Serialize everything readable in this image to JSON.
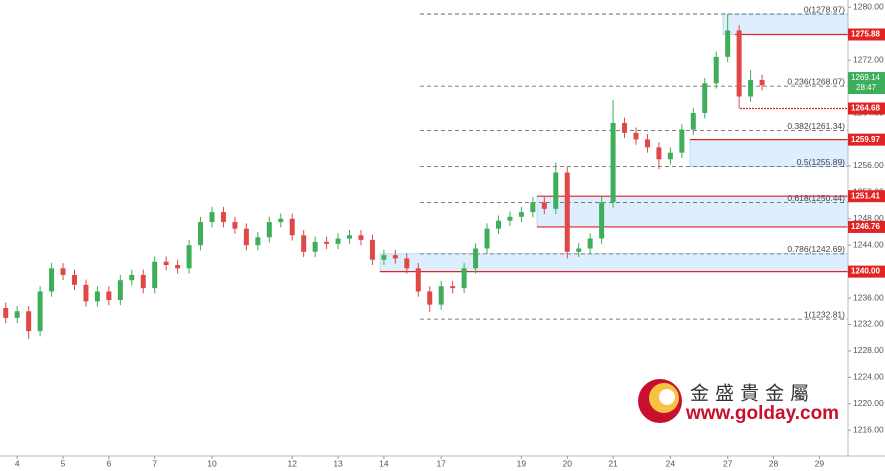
{
  "chart_data": {
    "type": "candlestick",
    "categories": [
      null,
      "4",
      null,
      null,
      null,
      "5",
      null,
      null,
      null,
      "6",
      null,
      null,
      null,
      "7",
      null,
      null,
      null,
      null,
      "10",
      null,
      null,
      null,
      null,
      null,
      null,
      "12",
      null,
      null,
      null,
      "13",
      null,
      null,
      null,
      "14",
      null,
      null,
      null,
      null,
      "17",
      null,
      null,
      null,
      null,
      null,
      null,
      "19",
      null,
      null,
      null,
      "20",
      null,
      null,
      null,
      "21",
      null,
      null,
      null,
      null,
      "24",
      null,
      null,
      null,
      null,
      "27",
      null,
      null,
      null,
      "28",
      null,
      null,
      null,
      "29",
      null,
      null
    ],
    "open": [
      1234.5,
      1233,
      1234,
      1231,
      1237,
      1240.5,
      1239.5,
      1238,
      1235.5,
      1237,
      1235.7,
      1238.7,
      1239.5,
      1237.5,
      1241.5,
      1241,
      1240.5,
      1244,
      1247.5,
      1249,
      1247.5,
      1246.5,
      1244,
      1245.2,
      1247.5,
      1248,
      1245.5,
      1243,
      1244.5,
      1244.2,
      1245,
      1245.5,
      1244.8,
      1241.8,
      1242.5,
      1242,
      1240.5,
      1237,
      1235,
      1237.8,
      1237.5,
      1240.5,
      1243.5,
      1246.5,
      1247.7,
      1248.3,
      1249,
      1250.5,
      1249.5,
      1255,
      1243,
      1243.5,
      1245,
      1250.5,
      1262.5,
      1261,
      1260,
      1258.8,
      1257,
      1258,
      1261.5,
      1264,
      1268.5,
      1272.5,
      1276.5,
      1266.5,
      1269,
      null,
      null,
      null,
      null,
      null,
      null,
      null
    ],
    "high": [
      1235.3,
      1234.8,
      1234.8,
      1237.8,
      1241.3,
      1241.3,
      1240.3,
      1238.8,
      1237.8,
      1237.8,
      1239.5,
      1240.3,
      1240.3,
      1242.3,
      1242.3,
      1241.8,
      1244.8,
      1248.3,
      1249.8,
      1249.8,
      1248.3,
      1247.3,
      1246,
      1248.3,
      1248.8,
      1248.8,
      1246.3,
      1245.3,
      1245.3,
      1245.8,
      1246.3,
      1246.3,
      1245.6,
      1243.3,
      1243.3,
      1242.8,
      1241.3,
      1237.8,
      1238.6,
      1238.6,
      1241.3,
      1244.3,
      1247.3,
      1248.5,
      1249.1,
      1249.8,
      1251.3,
      1251.3,
      1256.5,
      1255.8,
      1244.3,
      1245.8,
      1251.3,
      1266,
      1263.3,
      1261.8,
      1260.8,
      1259.6,
      1258.8,
      1262.3,
      1264.8,
      1269.3,
      1273.3,
      1278.97,
      1277.3,
      1270.5,
      1269.8,
      null,
      null,
      null,
      null,
      null,
      null,
      null
    ],
    "low": [
      1232.2,
      1232.2,
      1229.8,
      1230.2,
      1236.2,
      1238.7,
      1237.2,
      1234.7,
      1234.7,
      1234.9,
      1234.9,
      1237.9,
      1236.7,
      1236.7,
      1240.2,
      1239.7,
      1239.7,
      1243.2,
      1246.7,
      1246.7,
      1245.7,
      1243.2,
      1243.2,
      1244.4,
      1246.7,
      1244.7,
      1242.2,
      1242.2,
      1243.4,
      1243.4,
      1244.2,
      1244,
      1241,
      1241,
      1241.2,
      1239.7,
      1236.2,
      1233.9,
      1234.2,
      1236.7,
      1236.7,
      1239.7,
      1242.7,
      1245.7,
      1246.9,
      1247.5,
      1248.2,
      1248.7,
      1248.7,
      1242,
      1242.2,
      1242.7,
      1244.2,
      1249.7,
      1260.2,
      1259.2,
      1258,
      1255.5,
      1256.2,
      1257.2,
      1260.7,
      1263.2,
      1267.7,
      1271.7,
      1264.7,
      1265.7,
      1267.4,
      null,
      null,
      null,
      null,
      null,
      null,
      null
    ],
    "close": [
      1233,
      1234,
      1231,
      1237,
      1240.5,
      1239.5,
      1238,
      1235.5,
      1237,
      1235.7,
      1238.7,
      1239.5,
      1237.5,
      1241.5,
      1241,
      1240.5,
      1244,
      1247.5,
      1249,
      1247.5,
      1246.5,
      1244,
      1245.2,
      1247.5,
      1248,
      1245.5,
      1243,
      1244.5,
      1244.2,
      1245,
      1245.5,
      1244.8,
      1241.8,
      1242.5,
      1242,
      1240.5,
      1237,
      1235,
      1237.8,
      1237.5,
      1240.5,
      1243.5,
      1246.5,
      1247.7,
      1248.3,
      1249,
      1250.5,
      1249.5,
      1255,
      1243,
      1243.5,
      1245,
      1250.5,
      1262.5,
      1261,
      1260,
      1258.8,
      1257,
      1258,
      1261.5,
      1264,
      1268.5,
      1272.5,
      1276.5,
      1266.5,
      1269,
      1268.2,
      null,
      null,
      null,
      null,
      null,
      null,
      null
    ],
    "up_color": "#3fae5a",
    "down_color": "#e04848",
    "ylim": [
      1212.1,
      1281.1
    ],
    "yticks": [
      {
        "value": 1216,
        "label": "1216.00"
      },
      {
        "value": 1220,
        "label": "1220.00"
      },
      {
        "value": 1224,
        "label": "1224.00"
      },
      {
        "value": 1228,
        "label": "1228.00"
      },
      {
        "value": 1232,
        "label": "1232.00"
      },
      {
        "value": 1236,
        "label": "1236.00"
      },
      {
        "value": 1240,
        "label": "1240.00"
      },
      {
        "value": 1244,
        "label": "1244.00"
      },
      {
        "value": 1248,
        "label": "1248.00"
      },
      {
        "value": 1252,
        "label": "1252.00"
      },
      {
        "value": 1256,
        "label": "1256.00"
      },
      {
        "value": 1260,
        "label": "1260.00"
      },
      {
        "value": 1264,
        "label": "1264.00"
      },
      {
        "value": 1268,
        "label": "1268.00"
      },
      {
        "value": 1272,
        "label": "1272.00"
      },
      {
        "value": 1276,
        "label": "1276.00"
      },
      {
        "value": 1280,
        "label": "1280.00"
      }
    ],
    "fib_levels": [
      {
        "value": 1278.97,
        "label": "0(1278.97)"
      },
      {
        "value": 1268.07,
        "label": "0.236(1268.07)"
      },
      {
        "value": 1261.34,
        "label": "0.382(1261.34)"
      },
      {
        "value": 1255.89,
        "label": "0.5(1255.89)"
      },
      {
        "value": 1250.44,
        "label": "0.618(1250.44)"
      },
      {
        "value": 1242.69,
        "label": "0.786(1242.69)"
      },
      {
        "value": 1232.81,
        "label": "1(1232.81)"
      }
    ],
    "levels": [
      {
        "value": 1275.88,
        "label": "1275.88"
      },
      {
        "value": 1264.68,
        "label": "1264.68"
      },
      {
        "value": 1259.97,
        "label": "1259.97"
      },
      {
        "value": 1251.41,
        "label": "1251.41"
      },
      {
        "value": 1246.76,
        "label": "1246.76"
      },
      {
        "value": 1240,
        "label": "1240.00"
      }
    ],
    "level_color": "#e02424",
    "last_price": {
      "value": 1269.14,
      "label": "1269.14"
    },
    "countdown": "28:47"
  },
  "watermark": {
    "title": "金 盛 貴 金 屬",
    "url": "www.golday.com"
  }
}
